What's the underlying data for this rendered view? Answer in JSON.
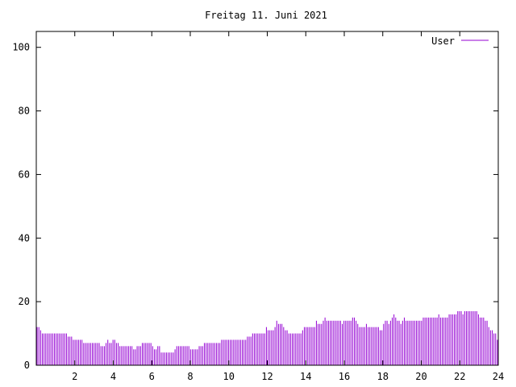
{
  "chart_data": {
    "type": "bar",
    "title": "Freitag 11. Juni 2021",
    "xlabel": "",
    "ylabel": "",
    "xlim": [
      0,
      24
    ],
    "ylim": [
      0,
      105
    ],
    "x_ticks": [
      2,
      4,
      6,
      8,
      10,
      12,
      14,
      16,
      18,
      20,
      22,
      24
    ],
    "y_ticks": [
      0,
      20,
      40,
      60,
      80,
      100
    ],
    "grid": false,
    "legend_position": "top-right",
    "series": [
      {
        "name": "User",
        "color": "#9400d3",
        "values": [
          12,
          12,
          11,
          10,
          10,
          10,
          10,
          10,
          10,
          10,
          10,
          10,
          10,
          10,
          10,
          10,
          10,
          10,
          9,
          9,
          9,
          8,
          8,
          8,
          8,
          8,
          8,
          7,
          7,
          7,
          7,
          7,
          7,
          7,
          7,
          7,
          7,
          6,
          6,
          6,
          7,
          8,
          7,
          7,
          8,
          8,
          7,
          7,
          6,
          6,
          6,
          6,
          6,
          6,
          6,
          6,
          5,
          5,
          6,
          6,
          6,
          7,
          7,
          7,
          7,
          7,
          7,
          6,
          5,
          5,
          6,
          6,
          4,
          4,
          4,
          4,
          4,
          4,
          4,
          4,
          5,
          6,
          6,
          6,
          6,
          6,
          6,
          6,
          6,
          5,
          5,
          5,
          5,
          5,
          6,
          6,
          6,
          7,
          7,
          7,
          7,
          7,
          7,
          7,
          7,
          7,
          7,
          8,
          8,
          8,
          8,
          8,
          8,
          8,
          8,
          8,
          8,
          8,
          8,
          8,
          8,
          8,
          9,
          9,
          9,
          10,
          10,
          10,
          10,
          10,
          10,
          10,
          10,
          12,
          11,
          11,
          11,
          11,
          12,
          14,
          13,
          13,
          13,
          12,
          11,
          11,
          10,
          10,
          10,
          10,
          10,
          10,
          10,
          10,
          11,
          12,
          12,
          12,
          12,
          12,
          12,
          12,
          14,
          13,
          13,
          13,
          14,
          15,
          14,
          14,
          14,
          14,
          14,
          14,
          14,
          14,
          14,
          13,
          14,
          14,
          14,
          14,
          14,
          15,
          15,
          14,
          13,
          12,
          12,
          12,
          12,
          13,
          12,
          12,
          12,
          12,
          12,
          12,
          12,
          11,
          11,
          13,
          14,
          14,
          13,
          14,
          15,
          16,
          15,
          14,
          14,
          13,
          14,
          15,
          14,
          14,
          14,
          14,
          14,
          14,
          14,
          14,
          14,
          14,
          15,
          15,
          15,
          15,
          15,
          15,
          15,
          15,
          15,
          16,
          15,
          15,
          15,
          15,
          15,
          16,
          16,
          16,
          16,
          16,
          17,
          17,
          17,
          16,
          17,
          17,
          17,
          17,
          17,
          17,
          17,
          17,
          16,
          15,
          15,
          15,
          14,
          14,
          12,
          11,
          11,
          10,
          10,
          8
        ]
      }
    ]
  },
  "colors": {
    "series": "#9400d3",
    "axis": "#000000",
    "background": "#ffffff"
  }
}
